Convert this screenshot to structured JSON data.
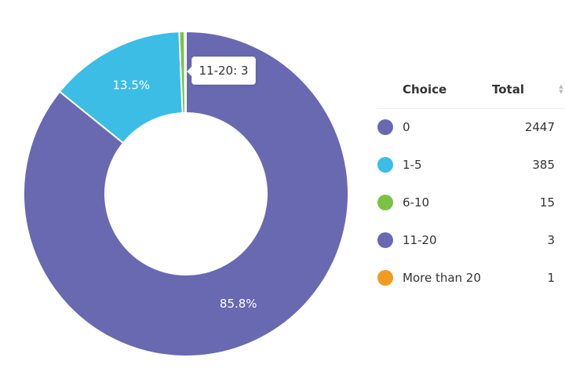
{
  "chart_data": {
    "type": "pie",
    "variant": "donut",
    "categories": [
      "0",
      "1-5",
      "6-10",
      "11-20",
      "More than 20"
    ],
    "values": [
      2447,
      385,
      15,
      3,
      1
    ],
    "colors": [
      "#6869b1",
      "#3cbde6",
      "#7cc242",
      "#6869b1",
      "#f29b21"
    ],
    "slice_labels": [
      "85.8%",
      "13.5%",
      "",
      "",
      ""
    ],
    "tooltip": "11-20: 3"
  },
  "legend": {
    "header_choice": "Choice",
    "header_total": "Total",
    "sort_icon": "sort-arrows-icon",
    "rows": [
      {
        "label": "0",
        "total": "2447",
        "color": "#6869b1"
      },
      {
        "label": "1-5",
        "total": "385",
        "color": "#3cbde6"
      },
      {
        "label": "6-10",
        "total": "15",
        "color": "#7cc242"
      },
      {
        "label": "11-20",
        "total": "3",
        "color": "#6869b1"
      },
      {
        "label": "More than 20",
        "total": "1",
        "color": "#f29b21"
      }
    ]
  }
}
